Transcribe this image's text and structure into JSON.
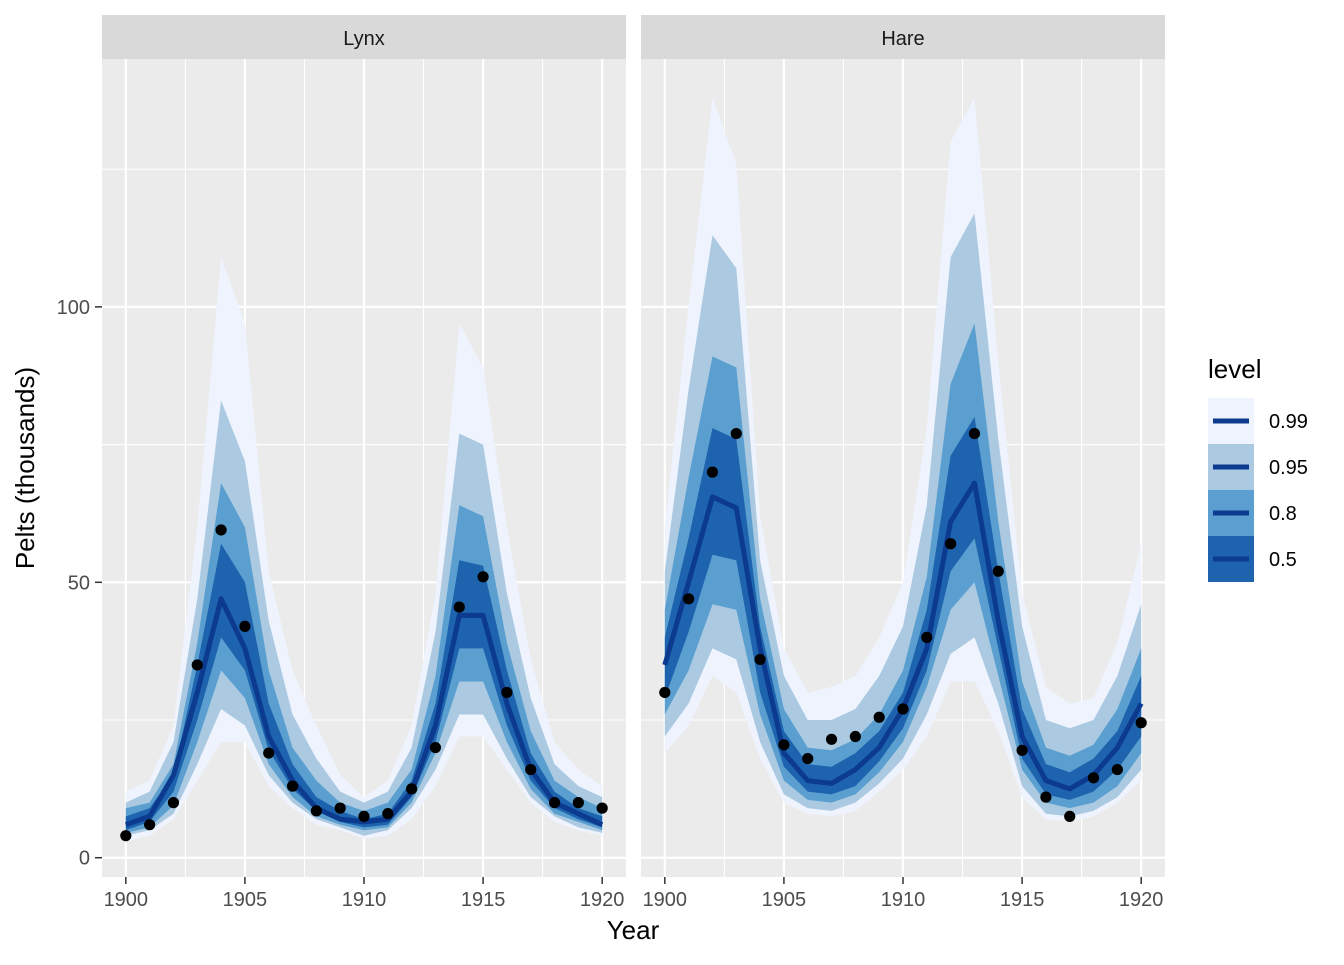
{
  "chart_data": {
    "type": "line",
    "xlabel": "Year",
    "ylabel": "Pelts (thousands)",
    "xlim": [
      1899,
      1921
    ],
    "ylim": [
      -3.5,
      145
    ],
    "x_ticks": [
      1900,
      1905,
      1910,
      1915,
      1920
    ],
    "y_ticks": [
      0,
      50,
      100
    ],
    "grid": true,
    "legend": {
      "title": "level",
      "position": "right",
      "entries": [
        "0.99",
        "0.95",
        "0.8",
        "0.5"
      ]
    },
    "colors": {
      "0.99": "#eef3fe",
      "0.95": "#abcae2",
      "0.8": "#5a9fcf",
      "0.5": "#1e63ad",
      "median": "#0b3a8e",
      "points": "#000000",
      "panel": "#ebebeb",
      "strip": "#d9d9d9",
      "grid": "#ffffff"
    },
    "panels": [
      {
        "name": "Lynx",
        "x": [
          1900,
          1901,
          1902,
          1903,
          1904,
          1905,
          1906,
          1907,
          1908,
          1909,
          1910,
          1911,
          1912,
          1913,
          1914,
          1915,
          1916,
          1917,
          1918,
          1919,
          1920
        ],
        "observed": [
          4,
          6,
          10,
          35,
          59.5,
          42,
          19,
          13,
          8.5,
          9,
          7.5,
          8,
          12.5,
          20,
          45.5,
          51,
          30,
          16,
          10,
          10,
          9
        ],
        "median": [
          6,
          7.5,
          15,
          30,
          47,
          38,
          22,
          14,
          9,
          7,
          6.5,
          7,
          12,
          24,
          44,
          44,
          28,
          16,
          10,
          8,
          6
        ],
        "bands": {
          "0.99": {
            "lower": [
              3,
              4,
              7,
              14,
              21,
              21,
              13,
              9,
              6,
              5,
              3.5,
              4,
              7,
              13,
              22,
              22,
              16,
              10,
              6.5,
              5,
              4
            ],
            "upper": [
              12,
              14,
              24,
              60,
              109,
              97,
              52,
              34,
              24,
              15,
              11,
              14,
              24,
              48,
              97,
              89,
              60,
              36,
              21,
              16,
              13
            ]
          },
          "0.95": {
            "lower": [
              4,
              5,
              8,
              17,
              27,
              24,
              15,
              10,
              7,
              5.5,
              4,
              5,
              9,
              16,
              26,
              26,
              18,
              11,
              7.5,
              5.5,
              4.5
            ],
            "upper": [
              10,
              12,
              21,
              47,
              83,
              72,
              43,
              26,
              18,
              12,
              10,
              12,
              20,
              41,
              77,
              75,
              48,
              29,
              17,
              13,
              11
            ]
          },
          "0.8": {
            "lower": [
              4.5,
              5.5,
              9.5,
              21,
              34,
              29,
              17,
              11,
              7.5,
              6,
              5,
              5.5,
              10,
              19,
              32,
              32,
              21,
              12.5,
              8,
              6.5,
              5
            ],
            "upper": [
              9,
              10,
              17,
              39,
              68,
              60,
              34,
              20,
              14,
              10,
              8.5,
              10,
              16,
              33,
              64,
              62,
              39,
              23,
              14,
              11,
              9
            ]
          },
          "0.5": {
            "lower": [
              5,
              6.5,
              12,
              25,
              40,
              34,
              19.5,
              12.5,
              8.5,
              6.5,
              5.5,
              6,
              11,
              21,
              38,
              38,
              24,
              14,
              9,
              7,
              5.5
            ],
            "upper": [
              7.5,
              9,
              15,
              35,
              57,
              50,
              28,
              17,
              11,
              8.5,
              7,
              8,
              14,
              28,
              54,
              53,
              34,
              19,
              12,
              9,
              7.5
            ]
          }
        }
      },
      {
        "name": "Hare",
        "x": [
          1900,
          1901,
          1902,
          1903,
          1904,
          1905,
          1906,
          1907,
          1908,
          1909,
          1910,
          1911,
          1912,
          1913,
          1914,
          1915,
          1916,
          1917,
          1918,
          1919,
          1920
        ],
        "observed": [
          30,
          47,
          70,
          77,
          36,
          20.5,
          18,
          21.5,
          22,
          25.5,
          27,
          40,
          57,
          77,
          52,
          19.5,
          11,
          7.5,
          14.5,
          16,
          24.5
        ],
        "median": [
          35,
          50,
          65.5,
          63.5,
          38,
          19,
          14,
          13.5,
          16,
          20,
          27,
          38,
          61,
          68,
          43,
          22,
          14,
          12.5,
          15,
          20,
          28
        ],
        "bands": {
          "0.99": {
            "lower": [
              19,
              24,
              33,
              30,
              18,
              10,
              8,
              7.5,
              8.5,
              12,
              16,
              22,
              32,
              32,
              23,
              11,
              7,
              6.5,
              7.5,
              10,
              14
            ],
            "upper": [
              60,
              100,
              138,
              126,
              62,
              38,
              30,
              31,
              33,
              40,
              50,
              78,
              130,
              138,
              90,
              48,
              31,
              28,
              29,
              39,
              57
            ]
          },
          "0.95": {
            "lower": [
              22,
              28,
              38,
              36,
              21,
              11.5,
              9,
              8.5,
              10,
              13.5,
              18,
              26,
              37,
              40,
              28,
              13,
              8,
              7.5,
              8.5,
              11,
              16
            ],
            "upper": [
              52,
              85,
              113,
              107,
              54,
              33,
              25,
              25,
              27,
              33,
              42,
              64,
              109,
              117,
              76,
              42,
              25,
              23.5,
              25,
              33,
              46
            ]
          },
          "0.8": {
            "lower": [
              26,
              34,
              46,
              45,
              26,
              14,
              10.5,
              10,
              11.5,
              15.5,
              21,
              31,
              45,
              50,
              33,
              16,
              10,
              9,
              10,
              13,
              19
            ],
            "upper": [
              45,
              69,
              91,
              89,
              47,
              27,
              20,
              19.5,
              21.5,
              26,
              34,
              51,
              86,
              97,
              61,
              32,
              20,
              18.5,
              20.5,
              27,
              38
            ]
          },
          "0.5": {
            "lower": [
              29,
              41,
              55,
              54,
              30,
              16.5,
              12,
              11.5,
              13,
              17.5,
              23.5,
              34,
              52,
              58,
              38,
              18,
              11.5,
              10.5,
              12,
              16,
              22
            ],
            "upper": [
              40,
              58,
              78,
              76,
              42,
              23,
              17,
              16.5,
              19,
              23,
              30,
              45,
              73,
              80,
              52,
              27,
              17,
              15.5,
              18,
              23,
              33
            ]
          }
        }
      }
    ]
  }
}
